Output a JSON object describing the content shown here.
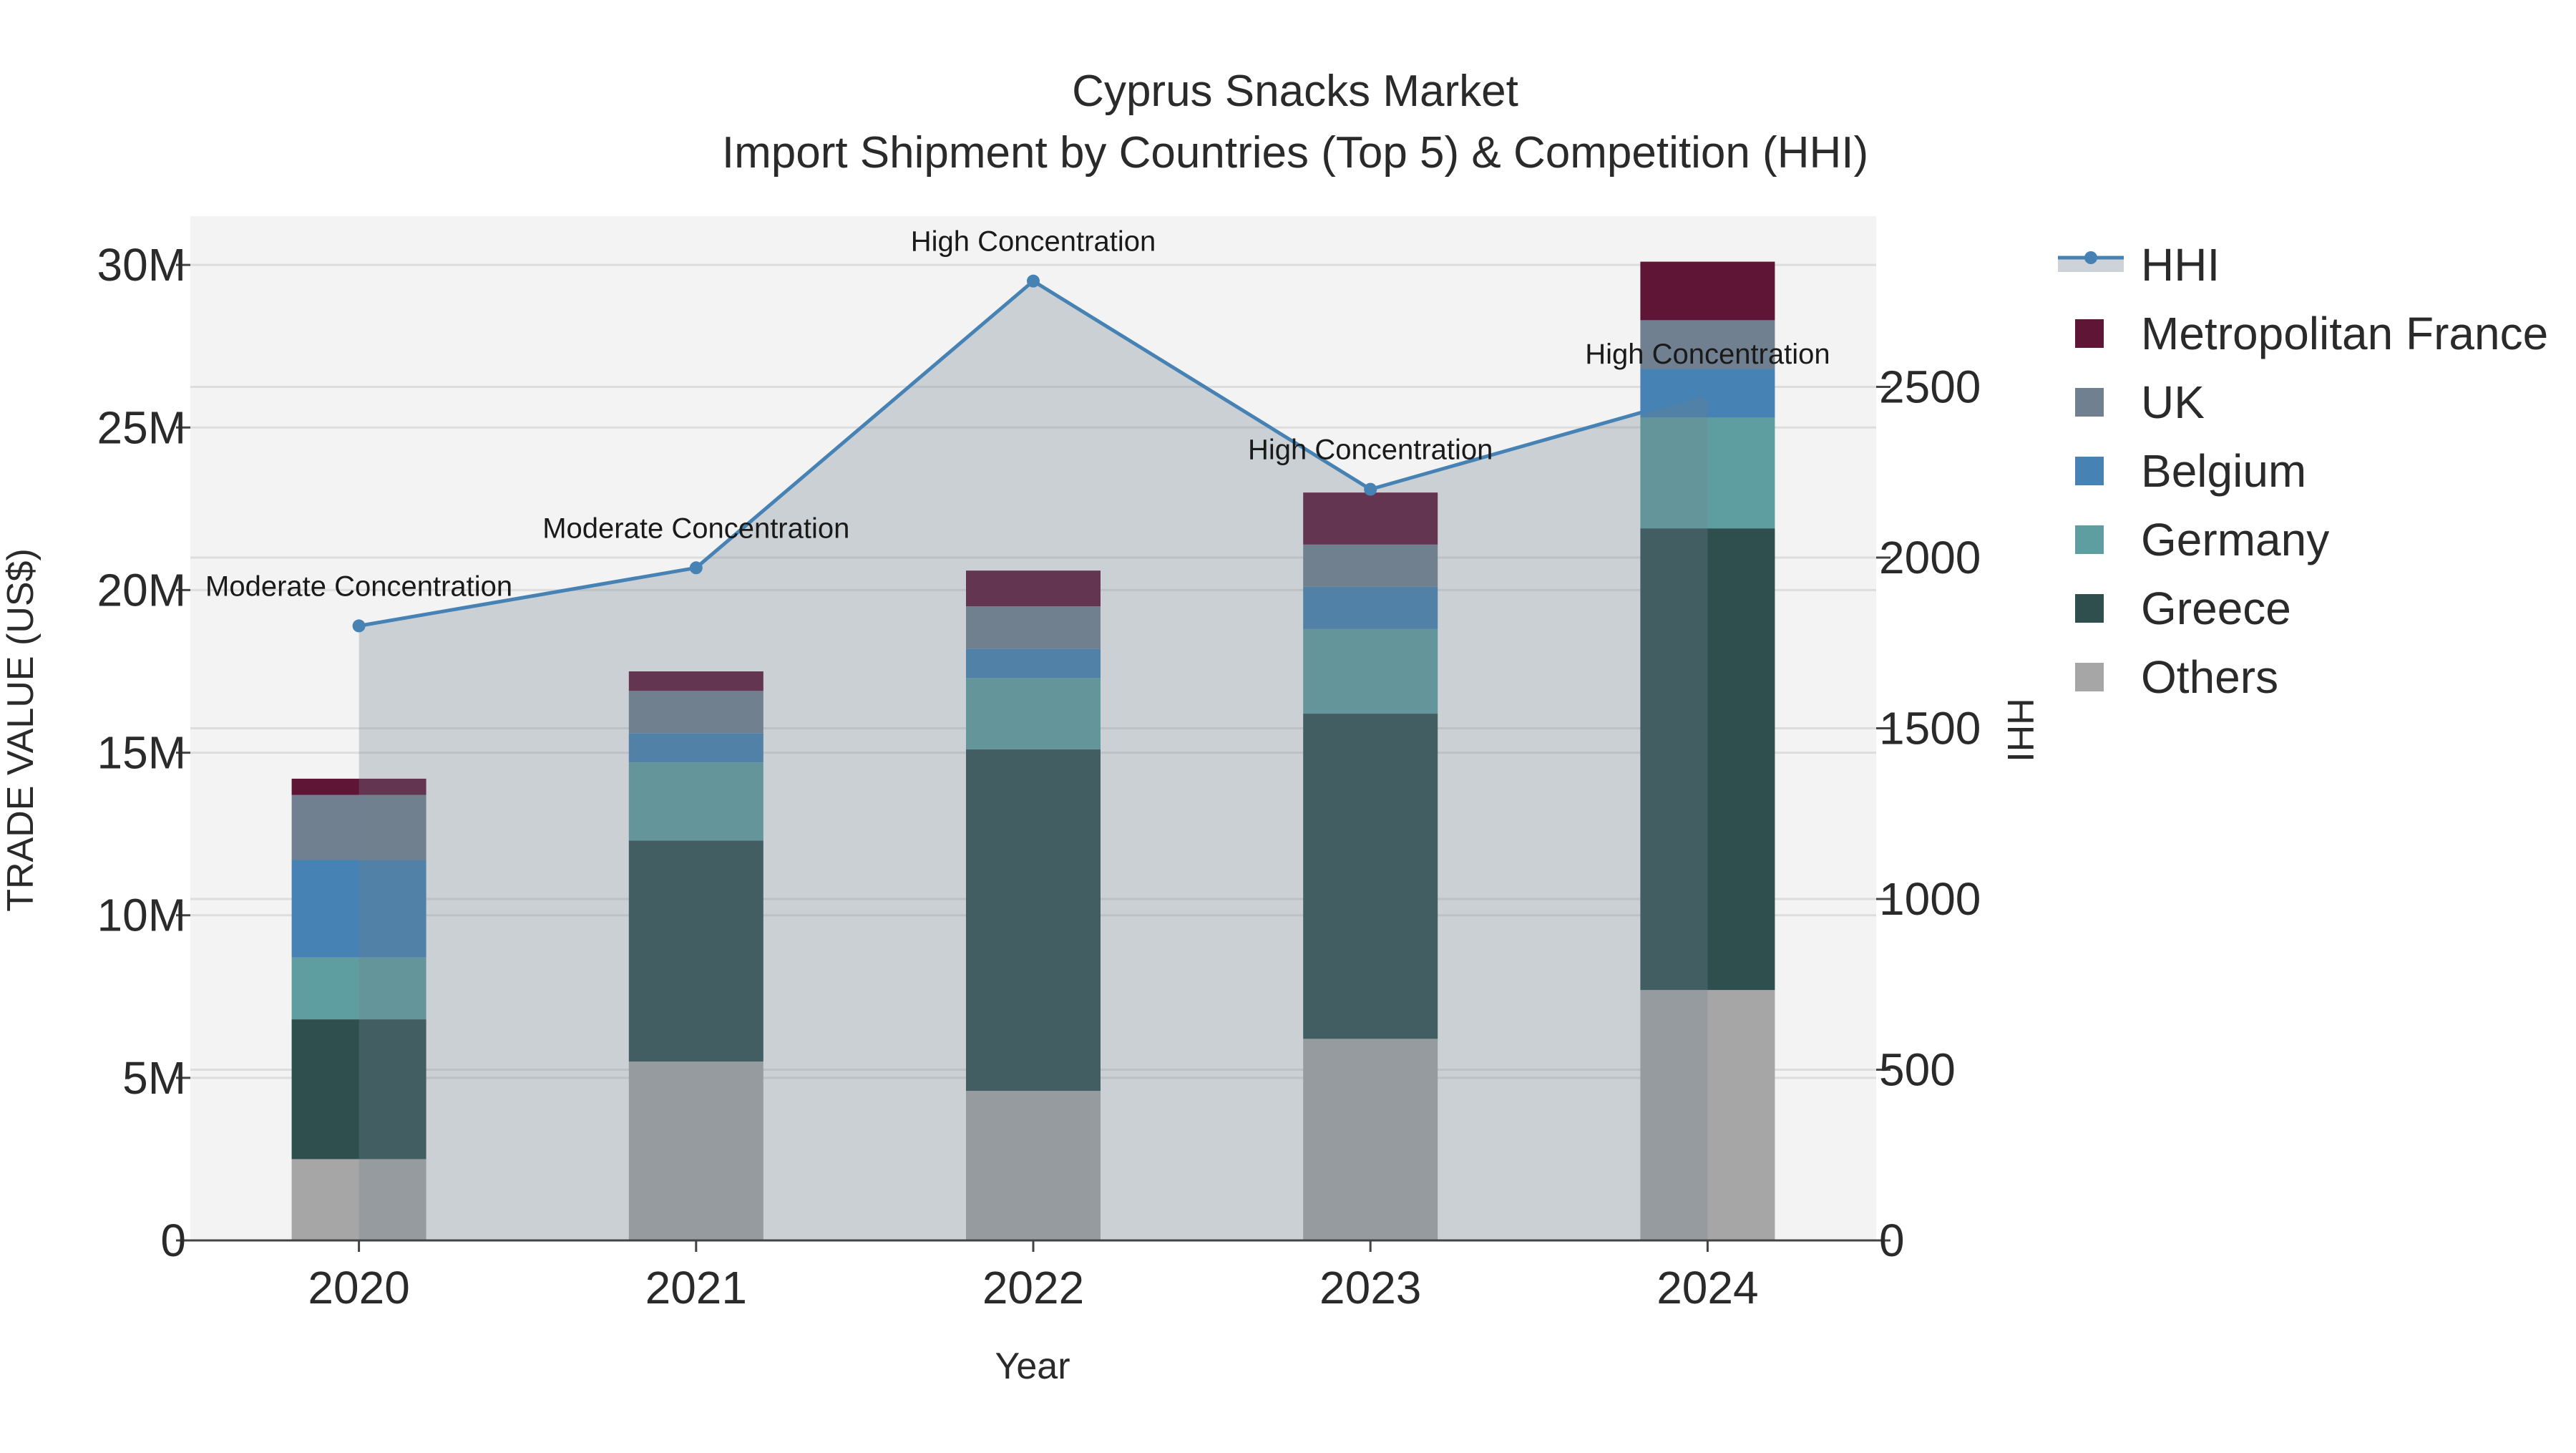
{
  "chart_data": {
    "type": "bar",
    "title": "Cyprus Snacks Market",
    "subtitle": "Import Shipment by Countries (Top 5) & Competition (HHI)",
    "xlabel": "Year",
    "ylabel": "TRADE VALUE (US$)",
    "y2label": "HHI",
    "categories": [
      "2020",
      "2021",
      "2022",
      "2023",
      "2024"
    ],
    "ylim": [
      0,
      31500000
    ],
    "y2lim": [
      0,
      3000
    ],
    "y_ticks": [
      {
        "value": 0,
        "label": "0"
      },
      {
        "value": 5000000,
        "label": "5M"
      },
      {
        "value": 10000000,
        "label": "10M"
      },
      {
        "value": 15000000,
        "label": "15M"
      },
      {
        "value": 20000000,
        "label": "20M"
      },
      {
        "value": 25000000,
        "label": "25M"
      },
      {
        "value": 30000000,
        "label": "30M"
      }
    ],
    "y2_ticks": [
      {
        "value": 0,
        "label": "0"
      },
      {
        "value": 500,
        "label": "500"
      },
      {
        "value": 1000,
        "label": "1000"
      },
      {
        "value": 1500,
        "label": "1500"
      },
      {
        "value": 2000,
        "label": "2000"
      },
      {
        "value": 2500,
        "label": "2500"
      }
    ],
    "series": [
      {
        "name": "Others",
        "color": "#a6a6a6",
        "values": [
          2500000,
          5500000,
          4600000,
          6200000,
          7700000
        ]
      },
      {
        "name": "Greece",
        "color": "#2f4f4f",
        "values": [
          4300000,
          6800000,
          10500000,
          10000000,
          14200000
        ]
      },
      {
        "name": "Germany",
        "color": "#5f9ea0",
        "values": [
          1900000,
          2400000,
          2200000,
          2600000,
          3400000
        ]
      },
      {
        "name": "Belgium",
        "color": "#4682b4",
        "values": [
          3000000,
          900000,
          900000,
          1300000,
          1500000
        ]
      },
      {
        "name": "UK",
        "color": "#708090",
        "values": [
          2000000,
          1300000,
          1300000,
          1300000,
          1500000
        ]
      },
      {
        "name": "Metropolitan France",
        "color": "#5e1536",
        "values": [
          500000,
          600000,
          1100000,
          1600000,
          1800000
        ]
      }
    ],
    "hhi": {
      "name": "HHI",
      "color": "#4682b4",
      "values": [
        1800,
        1970,
        2810,
        2200,
        2480
      ],
      "labels": [
        "Moderate Concentration",
        "Moderate Concentration",
        "High Concentration",
        "High Concentration",
        "High Concentration"
      ]
    },
    "legend_order": [
      "HHI",
      "Metropolitan France",
      "UK",
      "Belgium",
      "Germany",
      "Greece",
      "Others"
    ],
    "legend_position": "right",
    "grid": true
  }
}
